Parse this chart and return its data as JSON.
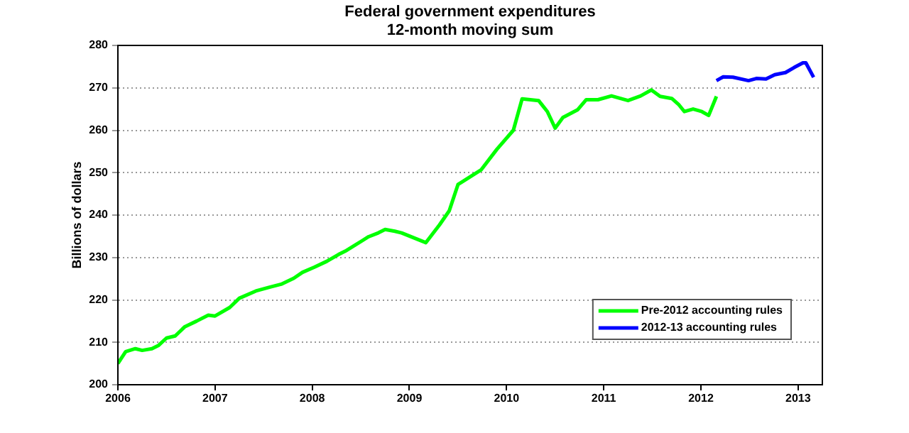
{
  "chart_data": {
    "type": "line",
    "title": "Federal government expenditures\n12-month moving sum",
    "ylabel": "Billions of dollars",
    "xlim": [
      2006,
      2013.25
    ],
    "xticks": [
      2006,
      2007,
      2008,
      2009,
      2010,
      2011,
      2012,
      2013
    ],
    "ylim": [
      200,
      280
    ],
    "yticks": [
      200,
      210,
      220,
      230,
      240,
      250,
      260,
      270,
      280
    ],
    "grid": "y",
    "legend": "bottom right",
    "line_style": "solid",
    "marker": "none",
    "series": [
      {
        "name": "Pre-2012 accounting rules",
        "color": "#00ff00",
        "x": [
          2006.0,
          2006.08,
          2006.18,
          2006.25,
          2006.35,
          2006.42,
          2006.5,
          2006.59,
          2006.69,
          2006.81,
          2006.93,
          2007.0,
          2007.15,
          2007.25,
          2007.42,
          2007.56,
          2007.68,
          2007.81,
          2007.9,
          2008.02,
          2008.15,
          2008.27,
          2008.34,
          2008.44,
          2008.58,
          2008.68,
          2008.75,
          2008.85,
          2008.92,
          2009.17,
          2009.31,
          2009.41,
          2009.5,
          2009.61,
          2009.74,
          2009.9,
          2010.07,
          2010.16,
          2010.33,
          2010.42,
          2010.5,
          2010.58,
          2010.73,
          2010.82,
          2010.94,
          2011.08,
          2011.25,
          2011.38,
          2011.49,
          2011.58,
          2011.7,
          2011.77,
          2011.83,
          2011.92,
          2012.01,
          2012.08,
          2012.16
        ],
        "values": [
          205,
          207.8,
          208.5,
          208.1,
          208.5,
          209.3,
          211,
          211.5,
          213.7,
          215,
          216.4,
          216.2,
          218.2,
          220.4,
          222.1,
          223,
          223.7,
          225.1,
          226.5,
          227.7,
          229.1,
          230.7,
          231.5,
          232.9,
          234.9,
          235.8,
          236.6,
          236.2,
          235.8,
          233.5,
          237.7,
          241,
          247.2,
          248.8,
          250.7,
          255.5,
          260,
          267.4,
          267,
          264.4,
          260.5,
          263,
          264.8,
          267.2,
          267.2,
          268.1,
          267,
          268.1,
          269.5,
          268,
          267.5,
          266.1,
          264.4,
          265,
          264.4,
          263.5,
          268
        ]
      },
      {
        "name": "2012-13 accounting rules",
        "color": "#0000ff",
        "x": [
          2012.16,
          2012.23,
          2012.33,
          2012.49,
          2012.57,
          2012.67,
          2012.76,
          2012.87,
          2012.96,
          2013.05,
          2013.08,
          2013.16
        ],
        "values": [
          271.7,
          272.6,
          272.5,
          271.7,
          272.2,
          272.1,
          273.1,
          273.6,
          274.8,
          275.9,
          275.9,
          272.5
        ]
      }
    ]
  }
}
